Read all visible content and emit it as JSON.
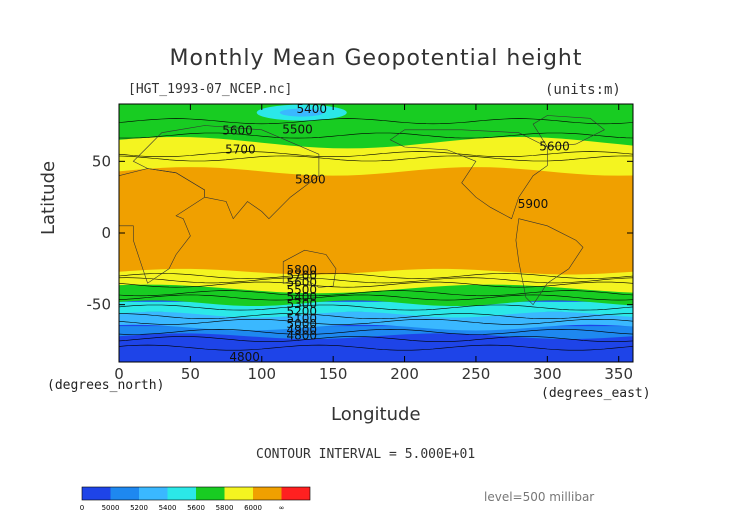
{
  "title": "Monthly Mean Geopotential height",
  "subtitle": "[HGT_1993-07_NCEP.nc]",
  "units": "(units:m)",
  "axes": {
    "ylabel": "Latitude",
    "xlabel": "Longitude",
    "yunit": "(degrees_north)",
    "xunit": "(degrees_east)"
  },
  "contour_interval": "CONTOUR INTERVAL = 5.000E+01",
  "level": "level=500 millibar",
  "colors": {
    "b4800": "#1e44e8",
    "b5000": "#1e88f0",
    "b5200": "#3ab8ff",
    "b5400": "#2be8e8",
    "b5600": "#18cc22",
    "b5800": "#f4f420",
    "b6000": "#f0a000",
    "b6200": "#ff2020"
  },
  "colorbar": {
    "labels": [
      "0",
      "5000",
      "5200",
      "5400",
      "5600",
      "5800",
      "6000",
      "∞"
    ]
  },
  "chart_data": {
    "type": "heatmap",
    "title": "Monthly Mean Geopotential height",
    "xlabel": "Longitude",
    "ylabel": "Latitude",
    "xlim": [
      0,
      360
    ],
    "ylim": [
      -90,
      90
    ],
    "x_ticks": [
      "0",
      "50",
      "100",
      "150",
      "200",
      "250",
      "300",
      "350"
    ],
    "y_ticks": [
      "50",
      "0",
      "-50"
    ],
    "contour_labels": [
      {
        "value": "5400",
        "lon": 135,
        "lat": 86
      },
      {
        "value": "5500",
        "lon": 125,
        "lat": 72
      },
      {
        "value": "5600",
        "lon": 83,
        "lat": 71
      },
      {
        "value": "5700",
        "lon": 85,
        "lat": 58
      },
      {
        "value": "5600",
        "lon": 305,
        "lat": 60
      },
      {
        "value": "5800",
        "lon": 134,
        "lat": 37
      },
      {
        "value": "5900",
        "lon": 290,
        "lat": 20
      },
      {
        "value": "5800",
        "lon": 128,
        "lat": -26
      },
      {
        "value": "5700",
        "lon": 128,
        "lat": -30
      },
      {
        "value": "5600",
        "lon": 128,
        "lat": -35
      },
      {
        "value": "5500",
        "lon": 128,
        "lat": -40
      },
      {
        "value": "5400",
        "lon": 128,
        "lat": -45
      },
      {
        "value": "5300",
        "lon": 128,
        "lat": -50
      },
      {
        "value": "5200",
        "lon": 128,
        "lat": -55
      },
      {
        "value": "5100",
        "lon": 128,
        "lat": -60
      },
      {
        "value": "5000",
        "lon": 128,
        "lat": -64
      },
      {
        "value": "4900",
        "lon": 128,
        "lat": -68
      },
      {
        "value": "4800",
        "lon": 128,
        "lat": -72
      },
      {
        "value": "4800",
        "lon": 88,
        "lat": -87
      }
    ]
  }
}
